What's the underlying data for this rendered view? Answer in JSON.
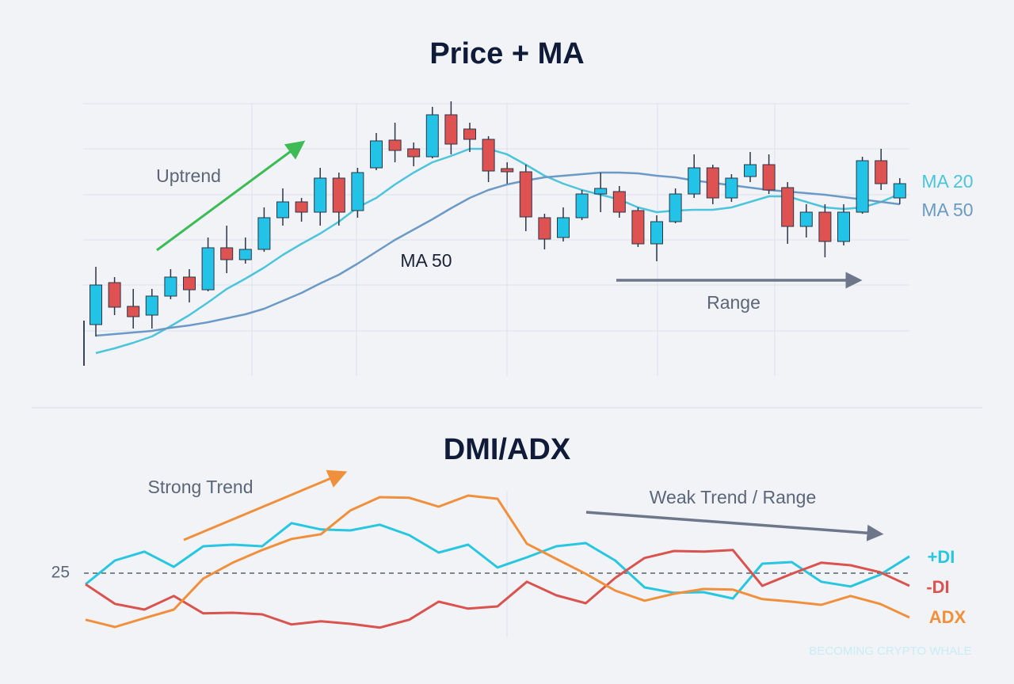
{
  "chart_data": [
    {
      "type": "candlestick",
      "title": "Price + MA",
      "ylim": [
        0,
        350
      ],
      "up_color": "#22c3e6",
      "down_color": "#df5252",
      "open": [
        70,
        123,
        93,
        82,
        106,
        130,
        114,
        167,
        152,
        165,
        205,
        225,
        212,
        255,
        214,
        268,
        303,
        292,
        282,
        335,
        317,
        304,
        267,
        263,
        205,
        180,
        205,
        235,
        238,
        214,
        172,
        200,
        235,
        268,
        230,
        257,
        272,
        243,
        194,
        212,
        175,
        212,
        277,
        230
      ],
      "high": [
        143,
        130,
        115,
        115,
        140,
        140,
        180,
        195,
        180,
        218,
        242,
        230,
        268,
        262,
        268,
        312,
        325,
        300,
        345,
        352,
        325,
        308,
        275,
        272,
        210,
        218,
        240,
        262,
        245,
        218,
        208,
        242,
        285,
        272,
        260,
        288,
        285,
        250,
        222,
        222,
        222,
        282,
        292,
        255
      ],
      "low": [
        55,
        82,
        65,
        65,
        102,
        98,
        112,
        135,
        147,
        162,
        195,
        200,
        195,
        195,
        205,
        265,
        275,
        270,
        280,
        285,
        288,
        250,
        248,
        188,
        165,
        175,
        202,
        212,
        205,
        168,
        150,
        198,
        230,
        222,
        225,
        250,
        235,
        172,
        180,
        155,
        170,
        210,
        240,
        222
      ],
      "close": [
        120,
        92,
        80,
        106,
        130,
        114,
        167,
        152,
        165,
        205,
        225,
        212,
        255,
        212,
        262,
        302,
        290,
        282,
        335,
        298,
        304,
        264,
        263,
        206,
        178,
        205,
        235,
        242,
        212,
        172,
        200,
        235,
        268,
        230,
        255,
        272,
        240,
        194,
        212,
        175,
        212,
        277,
        248,
        248
      ],
      "series": [
        {
          "name": "MA 20",
          "color": "#4cc4dc",
          "values": [
            34,
            40,
            47,
            55,
            68,
            82,
            98,
            115,
            128,
            142,
            158,
            172,
            185,
            200,
            218,
            230,
            247,
            262,
            275,
            283,
            292,
            292,
            285,
            272,
            258,
            248,
            240,
            234,
            228,
            218,
            212,
            214,
            215,
            215,
            218,
            225,
            232,
            232,
            225,
            218,
            216,
            218,
            225,
            235
          ]
        },
        {
          "name": "MA 50",
          "color": "#6b9ac6",
          "values": [
            56,
            58,
            60,
            62,
            66,
            69,
            73,
            78,
            83,
            90,
            100,
            110,
            122,
            133,
            147,
            162,
            177,
            190,
            203,
            217,
            230,
            240,
            247,
            252,
            256,
            258,
            260,
            262,
            262,
            261,
            258,
            256,
            252,
            249,
            246,
            243,
            240,
            238,
            236,
            234,
            231,
            228,
            225,
            222
          ]
        }
      ],
      "annotations": [
        "Uptrend",
        "MA 50",
        "Range"
      ]
    },
    {
      "type": "line",
      "title": "DMI/ADX",
      "ylim": [
        5,
        55
      ],
      "yticks": [
        25
      ],
      "series": [
        {
          "name": "+DI",
          "color": "#28c6e0",
          "values": [
            21.5,
            29,
            31.8,
            27,
            33.5,
            34,
            33.5,
            40.8,
            38.8,
            38.5,
            40.3,
            37,
            31.5,
            34,
            26.8,
            30,
            33.5,
            34.5,
            29,
            20.5,
            18.8,
            19,
            17,
            28,
            28.5,
            22.3,
            20.8,
            24.5,
            30.3
          ]
        },
        {
          "name": "-DI",
          "color": "#d9534f",
          "values": [
            21.5,
            15.3,
            13.5,
            17.8,
            12.3,
            12.5,
            12,
            8.8,
            9.8,
            9,
            7.8,
            10.3,
            16,
            13.8,
            14.5,
            22.3,
            18,
            15.5,
            23.5,
            29.8,
            32,
            31.8,
            32.3,
            21,
            24.8,
            28.3,
            27.5,
            25.3,
            21
          ]
        },
        {
          "name": "ADX",
          "color": "#f0903c",
          "values": [
            10.3,
            8,
            10.8,
            13.5,
            23.3,
            28.3,
            32.3,
            35.8,
            37.3,
            44.8,
            49,
            48.8,
            46,
            49.5,
            48.5,
            34.3,
            29.5,
            24.8,
            19.5,
            16.3,
            18.5,
            20,
            19.8,
            16.8,
            16,
            15,
            17.8,
            15.3,
            11
          ]
        }
      ],
      "annotations": [
        "Strong Trend",
        "Weak Trend / Range"
      ]
    }
  ],
  "watermark": "BECOMING CRYPTO WHALE"
}
